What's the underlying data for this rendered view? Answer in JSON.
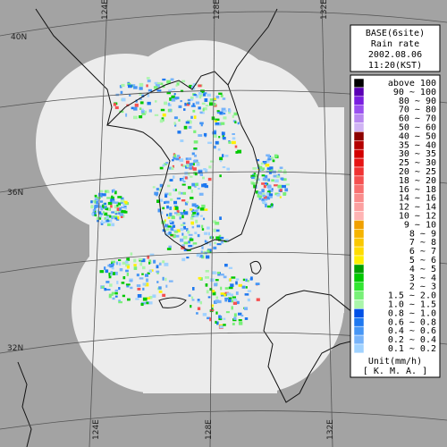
{
  "map": {
    "latitude_labels": [
      "40N",
      "36N",
      "32N"
    ],
    "longitude_labels_top": [
      "124E",
      "128E",
      "132E"
    ],
    "longitude_labels_bottom": [
      "124E",
      "128E",
      "132E"
    ]
  },
  "title_box": {
    "lines": [
      "BASE(6site)",
      "Rain rate",
      "2002.08.06",
      "11:20(KST)"
    ]
  },
  "legend": {
    "items": [
      {
        "label": "above 100",
        "color": "#000000"
      },
      {
        "label": "90 ~ 100",
        "color": "#5a00b4"
      },
      {
        "label": "80 ~ 90",
        "color": "#7a1ee0"
      },
      {
        "label": "70 ~ 80",
        "color": "#9a50f0"
      },
      {
        "label": "60 ~ 70",
        "color": "#b888f0"
      },
      {
        "label": "50 ~ 60",
        "color": "#d0b4f4"
      },
      {
        "label": "40 ~ 50",
        "color": "#8c0000"
      },
      {
        "label": "35 ~ 40",
        "color": "#b40000"
      },
      {
        "label": "30 ~ 35",
        "color": "#d20000"
      },
      {
        "label": "25 ~ 30",
        "color": "#e61414"
      },
      {
        "label": "20 ~ 25",
        "color": "#f03232"
      },
      {
        "label": "18 ~ 20",
        "color": "#f55050"
      },
      {
        "label": "16 ~ 18",
        "color": "#f87070"
      },
      {
        "label": "14 ~ 16",
        "color": "#fa8c8c"
      },
      {
        "label": "12 ~ 14",
        "color": "#fca0a0"
      },
      {
        "label": "10 ~ 12",
        "color": "#ffb4b4"
      },
      {
        "label": "9 ~ 10",
        "color": "#f0a000"
      },
      {
        "label": "8 ~ 9",
        "color": "#f5b400"
      },
      {
        "label": "7 ~ 8",
        "color": "#fac800"
      },
      {
        "label": "6 ~ 7",
        "color": "#ffdc00"
      },
      {
        "label": "5 ~ 6",
        "color": "#fff000"
      },
      {
        "label": "4 ~ 5",
        "color": "#00a000"
      },
      {
        "label": "3 ~ 4",
        "color": "#00c800"
      },
      {
        "label": "2 ~ 3",
        "color": "#32e632"
      },
      {
        "label": "1.5 ~ 2.0",
        "color": "#78f078"
      },
      {
        "label": "1.0 ~ 1.5",
        "color": "#aaf5aa"
      },
      {
        "label": "0.8 ~ 1.0",
        "color": "#0050e6"
      },
      {
        "label": "0.6 ~ 0.8",
        "color": "#1e78f0"
      },
      {
        "label": "0.4 ~ 0.6",
        "color": "#4696f5"
      },
      {
        "label": "0.2 ~ 0.4",
        "color": "#78b4fa"
      },
      {
        "label": "0.1 ~ 0.2",
        "color": "#a0d2ff"
      }
    ],
    "unit": "Unit(mm/h)",
    "source": "[ K. M. A. ]"
  }
}
